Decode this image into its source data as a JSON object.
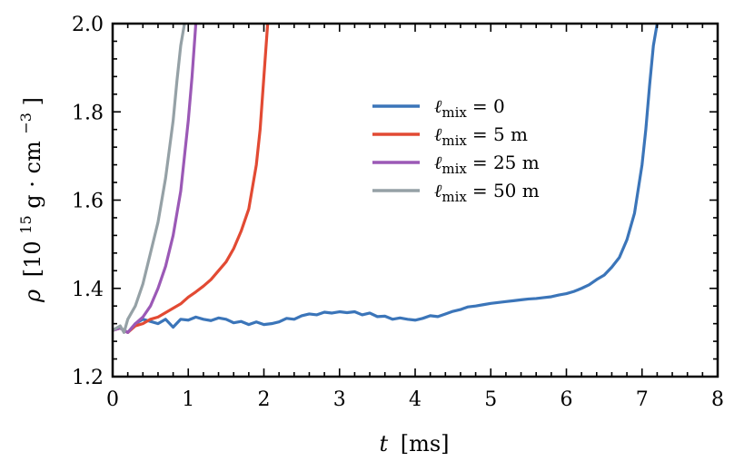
{
  "chart_data": {
    "type": "line",
    "xlabel": "t [ms]",
    "xlabel_var": "t",
    "xlabel_unit": "[ms]",
    "ylabel": "ρ [10^15 g · cm^−3]",
    "ylabel_var": "ρ",
    "ylabel_prefix": "[10",
    "ylabel_exp": "15",
    "ylabel_mid": " g · cm",
    "ylabel_exp2": "−3",
    "ylabel_suffix": "]",
    "xlim": [
      0,
      8
    ],
    "ylim": [
      1.2,
      2.0
    ],
    "xticks": [
      0,
      1,
      2,
      3,
      4,
      5,
      6,
      7,
      8
    ],
    "yticks": [
      1.2,
      1.4,
      1.6,
      1.8,
      2.0
    ],
    "xtick_labels": [
      "0",
      "1",
      "2",
      "3",
      "4",
      "5",
      "6",
      "7",
      "8"
    ],
    "ytick_labels": [
      "1.2",
      "1.4",
      "1.6",
      "1.8",
      "2.0"
    ],
    "grid": false,
    "legend_position": "upper-right",
    "series": [
      {
        "name": "ℓmix = 0",
        "label_var": "ℓ",
        "label_sub": "mix",
        "label_value": "=   0",
        "color": "#3b75b9",
        "x": [
          0.0,
          0.1,
          0.2,
          0.3,
          0.4,
          0.5,
          0.6,
          0.7,
          0.8,
          0.9,
          1.0,
          1.1,
          1.2,
          1.3,
          1.4,
          1.5,
          1.6,
          1.7,
          1.8,
          1.9,
          2.0,
          2.1,
          2.2,
          2.3,
          2.4,
          2.5,
          2.6,
          2.7,
          2.8,
          2.9,
          3.0,
          3.1,
          3.2,
          3.3,
          3.4,
          3.5,
          3.6,
          3.7,
          3.8,
          3.9,
          4.0,
          4.1,
          4.2,
          4.3,
          4.4,
          4.5,
          4.6,
          4.7,
          4.8,
          4.9,
          5.0,
          5.1,
          5.2,
          5.3,
          5.4,
          5.5,
          5.6,
          5.7,
          5.8,
          5.9,
          6.0,
          6.1,
          6.2,
          6.3,
          6.4,
          6.5,
          6.6,
          6.7,
          6.8,
          6.9,
          7.0,
          7.05,
          7.1,
          7.15,
          7.2
        ],
        "y": [
          1.305,
          1.31,
          1.3,
          1.32,
          1.33,
          1.325,
          1.32,
          1.33,
          1.312,
          1.33,
          1.328,
          1.335,
          1.33,
          1.327,
          1.333,
          1.33,
          1.322,
          1.325,
          1.318,
          1.324,
          1.318,
          1.32,
          1.324,
          1.332,
          1.33,
          1.338,
          1.342,
          1.34,
          1.346,
          1.344,
          1.347,
          1.345,
          1.347,
          1.34,
          1.344,
          1.336,
          1.337,
          1.33,
          1.333,
          1.33,
          1.328,
          1.332,
          1.338,
          1.336,
          1.342,
          1.348,
          1.352,
          1.358,
          1.36,
          1.363,
          1.366,
          1.368,
          1.37,
          1.372,
          1.374,
          1.376,
          1.377,
          1.379,
          1.381,
          1.385,
          1.388,
          1.393,
          1.4,
          1.408,
          1.42,
          1.43,
          1.448,
          1.47,
          1.51,
          1.57,
          1.68,
          1.76,
          1.86,
          1.95,
          2.0
        ]
      },
      {
        "name": "ℓmix = 5 m",
        "label_var": "ℓ",
        "label_sub": "mix",
        "label_value": "=   5 m",
        "color": "#e24a33",
        "x": [
          0.0,
          0.1,
          0.2,
          0.3,
          0.4,
          0.5,
          0.6,
          0.7,
          0.8,
          0.9,
          1.0,
          1.1,
          1.2,
          1.3,
          1.4,
          1.5,
          1.6,
          1.7,
          1.8,
          1.9,
          1.95,
          2.0,
          2.05
        ],
        "y": [
          1.305,
          1.31,
          1.3,
          1.315,
          1.32,
          1.33,
          1.335,
          1.345,
          1.355,
          1.365,
          1.38,
          1.392,
          1.405,
          1.42,
          1.44,
          1.46,
          1.49,
          1.53,
          1.58,
          1.68,
          1.76,
          1.88,
          2.0
        ]
      },
      {
        "name": "ℓmix = 25 m",
        "label_var": "ℓ",
        "label_sub": "mix",
        "label_value": "= 25 m",
        "color": "#9b59b6",
        "x": [
          0.0,
          0.1,
          0.2,
          0.3,
          0.4,
          0.5,
          0.6,
          0.7,
          0.8,
          0.9,
          1.0,
          1.05,
          1.1
        ],
        "y": [
          1.305,
          1.31,
          1.3,
          1.32,
          1.335,
          1.36,
          1.4,
          1.45,
          1.52,
          1.62,
          1.78,
          1.88,
          2.0
        ]
      },
      {
        "name": "ℓmix = 50 m",
        "label_var": "ℓ",
        "label_sub": "mix",
        "label_value": "= 50 m",
        "color": "#95a1a6",
        "x": [
          0.0,
          0.1,
          0.15,
          0.2,
          0.3,
          0.4,
          0.5,
          0.6,
          0.7,
          0.8,
          0.85,
          0.9,
          0.95
        ],
        "y": [
          1.305,
          1.315,
          1.3,
          1.33,
          1.36,
          1.41,
          1.48,
          1.55,
          1.65,
          1.78,
          1.87,
          1.95,
          2.0
        ]
      }
    ]
  }
}
